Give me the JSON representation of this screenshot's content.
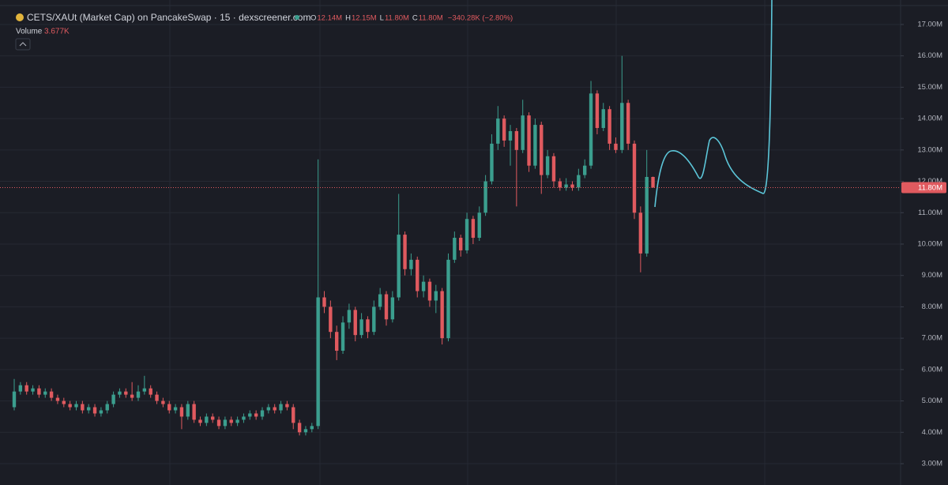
{
  "header": {
    "title": "CETS/XAUt (Market Cap) on PancakeSwap · 15 · dexscreener.com",
    "ohlc": [
      {
        "label": "O",
        "value": "12.14M"
      },
      {
        "label": "H",
        "value": "12.15M"
      },
      {
        "label": "L",
        "value": "11.80M"
      },
      {
        "label": "C",
        "value": "11.80M"
      }
    ],
    "change": "−340.28K (−2.80%)",
    "volume_label": "Volume",
    "volume_value": "3.677K"
  },
  "chart_data": {
    "type": "candlestick",
    "up_color": "#3b9e8e",
    "down_color": "#e05a5f",
    "ylim": [
      2.32,
      17.78
    ],
    "yticks": [
      {
        "value": 3,
        "label": "3.00M"
      },
      {
        "value": 4,
        "label": "4.00M"
      },
      {
        "value": 5,
        "label": "5.00M"
      },
      {
        "value": 6,
        "label": "6.00M"
      },
      {
        "value": 7,
        "label": "7.00M"
      },
      {
        "value": 8,
        "label": "8.00M"
      },
      {
        "value": 9,
        "label": "9.00M"
      },
      {
        "value": 10,
        "label": "10.00M"
      },
      {
        "value": 11,
        "label": "11.00M"
      },
      {
        "value": 12,
        "label": "12.00M"
      },
      {
        "value": 13,
        "label": "13.00M"
      },
      {
        "value": 14,
        "label": "14.00M"
      },
      {
        "value": 15,
        "label": "15.00M"
      },
      {
        "value": 16,
        "label": "16.00M"
      },
      {
        "value": 17,
        "label": "17.00M"
      }
    ],
    "grid": true,
    "last_price": {
      "value": 11.8,
      "label": "11.80M"
    },
    "ohlc": [
      [
        4.8,
        5.7,
        4.7,
        5.3
      ],
      [
        5.3,
        5.6,
        5.2,
        5.5
      ],
      [
        5.5,
        5.6,
        5.2,
        5.3
      ],
      [
        5.3,
        5.5,
        5.2,
        5.4
      ],
      [
        5.4,
        5.5,
        5.1,
        5.2
      ],
      [
        5.2,
        5.4,
        5.1,
        5.3
      ],
      [
        5.3,
        5.4,
        5.0,
        5.1
      ],
      [
        5.1,
        5.2,
        4.9,
        5.0
      ],
      [
        5.0,
        5.1,
        4.8,
        4.9
      ],
      [
        4.9,
        5.0,
        4.7,
        4.8
      ],
      [
        4.8,
        5.0,
        4.7,
        4.9
      ],
      [
        4.9,
        5.0,
        4.6,
        4.7
      ],
      [
        4.7,
        4.9,
        4.6,
        4.8
      ],
      [
        4.8,
        4.9,
        4.5,
        4.6
      ],
      [
        4.6,
        4.8,
        4.5,
        4.7
      ],
      [
        4.7,
        5.0,
        4.6,
        4.9
      ],
      [
        4.9,
        5.3,
        4.8,
        5.2
      ],
      [
        5.2,
        5.4,
        5.1,
        5.3
      ],
      [
        5.3,
        5.4,
        5.1,
        5.2
      ],
      [
        5.2,
        5.6,
        5.0,
        5.1
      ],
      [
        5.1,
        5.5,
        5.0,
        5.3
      ],
      [
        5.3,
        5.8,
        5.2,
        5.4
      ],
      [
        5.4,
        5.5,
        5.1,
        5.2
      ],
      [
        5.2,
        5.3,
        4.9,
        5.0
      ],
      [
        5.0,
        5.1,
        4.8,
        4.9
      ],
      [
        4.9,
        5.0,
        4.6,
        4.7
      ],
      [
        4.7,
        4.9,
        4.6,
        4.8
      ],
      [
        4.8,
        4.9,
        4.1,
        4.5
      ],
      [
        4.5,
        5.0,
        4.4,
        4.9
      ],
      [
        4.9,
        5.0,
        4.3,
        4.4
      ],
      [
        4.4,
        4.5,
        4.2,
        4.3
      ],
      [
        4.3,
        4.6,
        4.2,
        4.5
      ],
      [
        4.5,
        4.6,
        4.3,
        4.4
      ],
      [
        4.4,
        4.5,
        4.1,
        4.2
      ],
      [
        4.2,
        4.5,
        4.1,
        4.4
      ],
      [
        4.4,
        4.5,
        4.2,
        4.3
      ],
      [
        4.3,
        4.5,
        4.2,
        4.4
      ],
      [
        4.4,
        4.6,
        4.3,
        4.5
      ],
      [
        4.5,
        4.7,
        4.4,
        4.6
      ],
      [
        4.6,
        4.7,
        4.4,
        4.5
      ],
      [
        4.5,
        4.8,
        4.4,
        4.7
      ],
      [
        4.7,
        4.9,
        4.6,
        4.8
      ],
      [
        4.8,
        4.9,
        4.6,
        4.7
      ],
      [
        4.7,
        5.0,
        4.6,
        4.9
      ],
      [
        4.9,
        5.0,
        4.7,
        4.8
      ],
      [
        4.8,
        4.9,
        4.1,
        4.3
      ],
      [
        4.3,
        4.4,
        3.9,
        4.0
      ],
      [
        4.0,
        4.2,
        3.9,
        4.1
      ],
      [
        4.1,
        4.3,
        4.0,
        4.2
      ],
      [
        4.2,
        12.7,
        4.1,
        8.3
      ],
      [
        8.3,
        8.5,
        7.8,
        8.0
      ],
      [
        8.0,
        8.2,
        7.0,
        7.2
      ],
      [
        7.2,
        7.4,
        6.3,
        6.6
      ],
      [
        6.6,
        7.7,
        6.5,
        7.5
      ],
      [
        7.5,
        8.1,
        7.3,
        7.9
      ],
      [
        7.9,
        8.0,
        6.9,
        7.1
      ],
      [
        7.1,
        7.8,
        7.0,
        7.6
      ],
      [
        7.6,
        7.7,
        7.0,
        7.2
      ],
      [
        7.2,
        8.2,
        7.1,
        8.0
      ],
      [
        8.0,
        8.6,
        7.9,
        8.4
      ],
      [
        8.4,
        8.5,
        7.4,
        7.6
      ],
      [
        7.6,
        8.5,
        7.5,
        8.3
      ],
      [
        8.3,
        11.6,
        8.2,
        10.3
      ],
      [
        10.3,
        10.4,
        9.0,
        9.2
      ],
      [
        9.2,
        9.7,
        9.0,
        9.5
      ],
      [
        9.5,
        9.6,
        8.3,
        8.5
      ],
      [
        8.5,
        9.0,
        8.3,
        8.8
      ],
      [
        8.8,
        8.9,
        8.0,
        8.2
      ],
      [
        8.2,
        8.7,
        7.8,
        8.5
      ],
      [
        8.5,
        8.6,
        6.8,
        7.0
      ],
      [
        7.0,
        9.7,
        6.9,
        9.5
      ],
      [
        9.5,
        10.4,
        9.4,
        10.2
      ],
      [
        10.2,
        10.3,
        9.6,
        9.8
      ],
      [
        9.8,
        11.0,
        9.7,
        10.8
      ],
      [
        10.8,
        10.9,
        10.0,
        10.2
      ],
      [
        10.2,
        11.2,
        10.1,
        11.0
      ],
      [
        11.0,
        12.2,
        10.9,
        12.0
      ],
      [
        12.0,
        13.5,
        11.9,
        13.2
      ],
      [
        13.2,
        14.4,
        13.0,
        14.0
      ],
      [
        14.0,
        14.1,
        13.1,
        13.3
      ],
      [
        13.3,
        13.8,
        12.5,
        13.6
      ],
      [
        13.6,
        13.7,
        11.2,
        13.0
      ],
      [
        13.0,
        14.6,
        12.9,
        14.1
      ],
      [
        14.1,
        14.2,
        12.3,
        12.5
      ],
      [
        12.5,
        14.0,
        12.4,
        13.8
      ],
      [
        13.8,
        13.9,
        11.6,
        12.2
      ],
      [
        12.2,
        13.0,
        12.1,
        12.8
      ],
      [
        12.8,
        12.9,
        11.8,
        12.0
      ],
      [
        12.0,
        12.1,
        11.7,
        11.8
      ],
      [
        11.8,
        12.1,
        11.7,
        11.9
      ],
      [
        11.9,
        12.0,
        11.7,
        11.8
      ],
      [
        11.8,
        12.4,
        11.7,
        12.2
      ],
      [
        12.2,
        12.7,
        12.1,
        12.5
      ],
      [
        12.5,
        15.2,
        12.4,
        14.8
      ],
      [
        14.8,
        14.9,
        13.5,
        13.7
      ],
      [
        13.7,
        14.5,
        13.6,
        14.3
      ],
      [
        14.3,
        14.4,
        13.0,
        13.2
      ],
      [
        13.2,
        13.4,
        12.9,
        13.0
      ],
      [
        13.0,
        16.0,
        12.9,
        14.5
      ],
      [
        14.5,
        14.6,
        13.0,
        13.2
      ],
      [
        13.2,
        13.3,
        10.8,
        11.0
      ],
      [
        11.0,
        11.2,
        9.1,
        9.7
      ],
      [
        9.7,
        13.0,
        9.6,
        12.14
      ],
      [
        12.14,
        12.15,
        11.8,
        11.8
      ]
    ]
  }
}
